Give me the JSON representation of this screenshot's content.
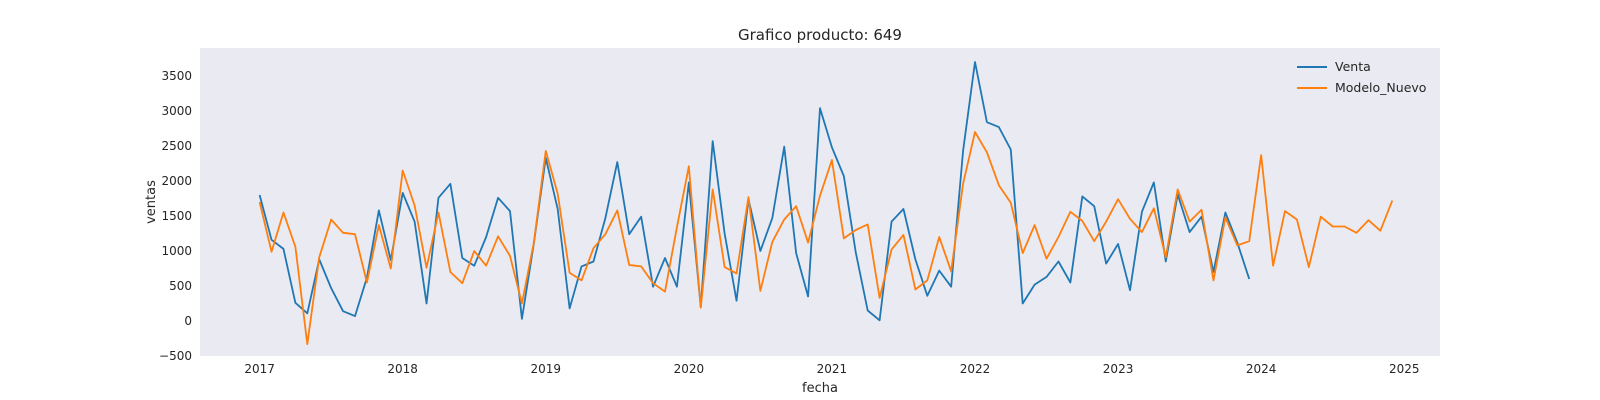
{
  "chart_data": {
    "type": "line",
    "title": "Grafico producto: 649",
    "xlabel": "fecha",
    "ylabel": "ventas",
    "x_ticks": [
      "2017",
      "2018",
      "2019",
      "2020",
      "2021",
      "2022",
      "2023",
      "2024",
      "2025"
    ],
    "y_ticks": [
      "−500",
      "0",
      "500",
      "1000",
      "1500",
      "2000",
      "2500",
      "3000",
      "3500"
    ],
    "xlim": [
      "2016-08",
      "2025-04"
    ],
    "ylim": [
      -500,
      3900
    ],
    "grid": false,
    "legend": "top-right",
    "x_start": "2017-01",
    "x_step": "1 month",
    "series": [
      {
        "name": "Venta",
        "color": "#1f77b4",
        "values": [
          1800,
          1160,
          1030,
          260,
          110,
          880,
          470,
          140,
          70,
          620,
          1580,
          870,
          1830,
          1420,
          250,
          1760,
          1960,
          900,
          790,
          1200,
          1760,
          1570,
          30,
          1110,
          2330,
          1600,
          180,
          780,
          850,
          1470,
          2270,
          1240,
          1490,
          490,
          900,
          490,
          1980,
          200,
          2570,
          1250,
          290,
          1740,
          1000,
          1470,
          2490,
          970,
          350,
          3040,
          2480,
          2070,
          980,
          150,
          10,
          1420,
          1600,
          880,
          360,
          720,
          490,
          2430,
          3700,
          2840,
          2770,
          2450,
          250,
          520,
          630,
          850,
          550,
          1780,
          1640,
          820,
          1100,
          440,
          1560,
          1980,
          850,
          1810,
          1270,
          1490,
          700,
          1550,
          1120,
          600
        ]
      },
      {
        "name": "Modelo_Nuevo",
        "color": "#ff7f0e",
        "values": [
          1700,
          990,
          1550,
          1060,
          -330,
          910,
          1450,
          1260,
          1240,
          550,
          1370,
          750,
          2150,
          1650,
          760,
          1550,
          700,
          540,
          1000,
          790,
          1210,
          930,
          250,
          1120,
          2430,
          1820,
          690,
          580,
          1040,
          1240,
          1580,
          800,
          780,
          540,
          420,
          1340,
          2210,
          190,
          1880,
          770,
          680,
          1770,
          430,
          1130,
          1450,
          1640,
          1120,
          1790,
          2300,
          1180,
          1300,
          1380,
          330,
          1020,
          1230,
          450,
          580,
          1200,
          710,
          1960,
          2700,
          2410,
          1940,
          1690,
          970,
          1370,
          890,
          1200,
          1560,
          1430,
          1140,
          1420,
          1740,
          1460,
          1270,
          1610,
          910,
          1880,
          1420,
          1590,
          580,
          1480,
          1080,
          1140,
          2370,
          790,
          1570,
          1450,
          770,
          1490,
          1350,
          1350,
          1260,
          1440,
          1290,
          1720
        ]
      }
    ]
  }
}
